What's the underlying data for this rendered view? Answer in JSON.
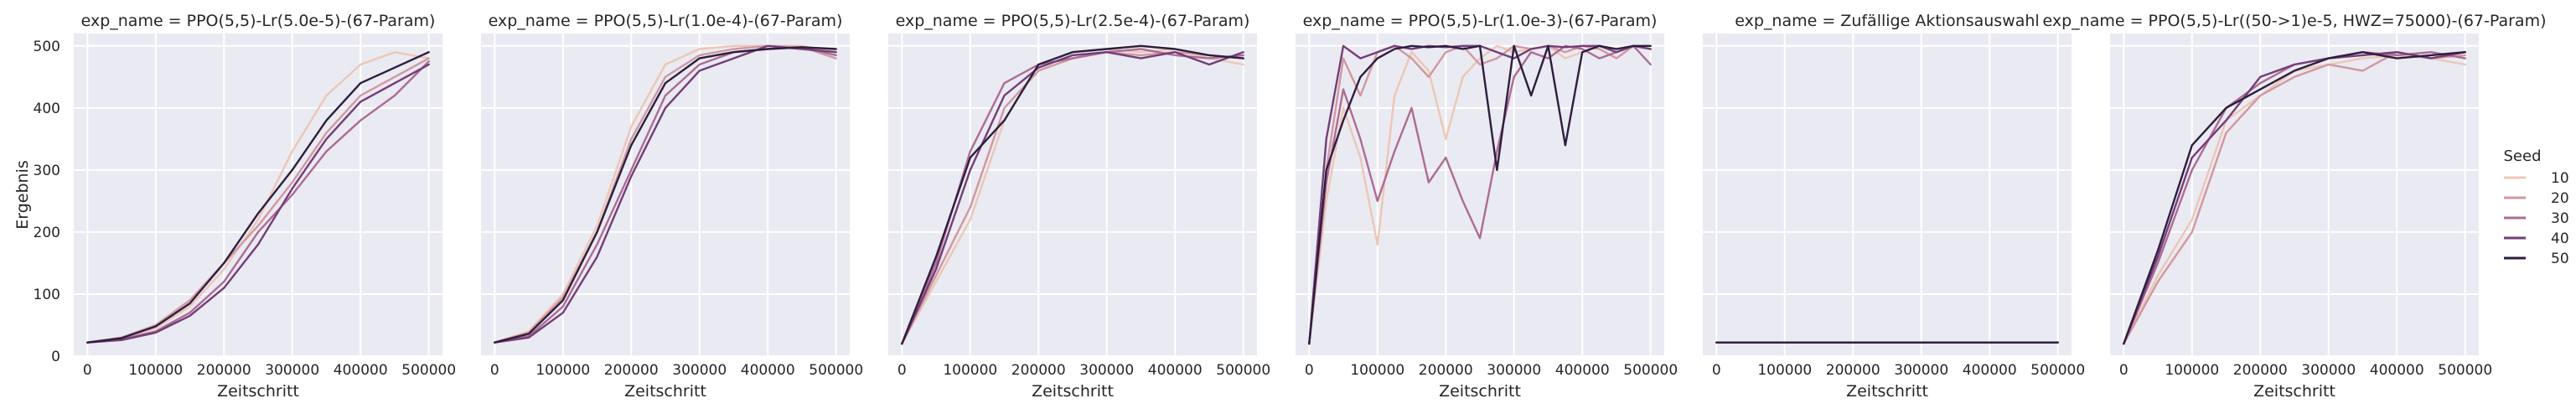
{
  "chart_data": {
    "type": "line",
    "facet_label": "exp_name",
    "xlabel": "Zeitschritt",
    "ylabel": "Ergebnis",
    "xlim": [
      -20000,
      520000
    ],
    "ylim": [
      0,
      520
    ],
    "xticks": [
      0,
      100000,
      200000,
      300000,
      400000,
      500000
    ],
    "yticks": [
      0,
      100,
      200,
      300,
      400,
      500
    ],
    "grid": true,
    "legend": {
      "title": "Seed",
      "placement": "right",
      "entries": [
        {
          "label": "10",
          "color": "#ecc7b6"
        },
        {
          "label": "20",
          "color": "#d297a0"
        },
        {
          "label": "30",
          "color": "#ad6c93"
        },
        {
          "label": "40",
          "color": "#733e77"
        },
        {
          "label": "50",
          "color": "#2d1e3e"
        }
      ]
    },
    "panels": [
      {
        "title": "exp_name = PPO(5,5)-Lr(5.0e-5)-(67-Param)",
        "x": [
          0,
          50000,
          100000,
          150000,
          200000,
          250000,
          300000,
          350000,
          400000,
          450000,
          500000
        ],
        "series": [
          {
            "name": "10",
            "values": [
              22,
              28,
              45,
              80,
              140,
              220,
              330,
              420,
              470,
              490,
              480
            ]
          },
          {
            "name": "20",
            "values": [
              22,
              30,
              50,
              90,
              150,
              210,
              280,
              360,
              420,
              450,
              480
            ]
          },
          {
            "name": "30",
            "values": [
              22,
              27,
              40,
              70,
              120,
              200,
              260,
              330,
              380,
              420,
              475
            ]
          },
          {
            "name": "40",
            "values": [
              22,
              26,
              38,
              65,
              110,
              180,
              270,
              350,
              410,
              440,
              470
            ]
          },
          {
            "name": "50",
            "values": [
              22,
              29,
              48,
              85,
              150,
              230,
              300,
              380,
              440,
              465,
              490
            ]
          }
        ]
      },
      {
        "title": "exp_name = PPO(5,5)-Lr(1.0e-4)-(67-Param)",
        "x": [
          0,
          50000,
          100000,
          150000,
          200000,
          250000,
          300000,
          350000,
          400000,
          450000,
          500000
        ],
        "series": [
          {
            "name": "10",
            "values": [
              22,
              40,
              100,
              210,
              370,
              470,
              495,
              500,
              500,
              500,
              490
            ]
          },
          {
            "name": "20",
            "values": [
              22,
              38,
              95,
              200,
              350,
              450,
              485,
              495,
              500,
              498,
              480
            ]
          },
          {
            "name": "30",
            "values": [
              22,
              32,
              80,
              180,
              300,
              420,
              470,
              490,
              495,
              498,
              485
            ]
          },
          {
            "name": "40",
            "values": [
              22,
              30,
              70,
              160,
              290,
              400,
              460,
              480,
              500,
              495,
              490
            ]
          },
          {
            "name": "50",
            "values": [
              22,
              36,
              90,
              200,
              340,
              440,
              480,
              490,
              495,
              498,
              495
            ]
          }
        ]
      },
      {
        "title": "exp_name = PPO(5,5)-Lr(2.5e-4)-(67-Param)",
        "x": [
          0,
          50000,
          100000,
          150000,
          200000,
          250000,
          300000,
          350000,
          400000,
          450000,
          500000
        ],
        "series": [
          {
            "name": "10",
            "values": [
              20,
              120,
              220,
              380,
              470,
              490,
              495,
              490,
              495,
              480,
              470
            ]
          },
          {
            "name": "20",
            "values": [
              20,
              130,
              240,
              400,
              460,
              480,
              490,
              485,
              490,
              485,
              480
            ]
          },
          {
            "name": "30",
            "values": [
              20,
              150,
              330,
              440,
              470,
              480,
              490,
              495,
              485,
              480,
              485
            ]
          },
          {
            "name": "40",
            "values": [
              20,
              140,
              300,
              420,
              465,
              485,
              490,
              480,
              490,
              470,
              490
            ]
          },
          {
            "name": "50",
            "values": [
              20,
              160,
              320,
              380,
              470,
              490,
              495,
              500,
              495,
              485,
              480
            ]
          }
        ]
      },
      {
        "title": "exp_name = PPO(5,5)-Lr(1.0e-3)-(67-Param)",
        "x": [
          0,
          25000,
          50000,
          75000,
          100000,
          125000,
          150000,
          175000,
          200000,
          225000,
          250000,
          275000,
          300000,
          325000,
          350000,
          375000,
          400000,
          425000,
          450000,
          475000,
          500000
        ],
        "series": [
          {
            "name": "10",
            "values": [
              20,
              250,
              400,
              320,
              180,
              420,
              490,
              460,
              350,
              450,
              480,
              500,
              490,
              495,
              500,
              480,
              490,
              500,
              495,
              498,
              500
            ]
          },
          {
            "name": "20",
            "values": [
              20,
              300,
              480,
              420,
              490,
              500,
              480,
              450,
              490,
              500,
              470,
              480,
              500,
              495,
              500,
              490,
              500,
              495,
              480,
              500,
              495
            ]
          },
          {
            "name": "30",
            "values": [
              20,
              280,
              430,
              350,
              250,
              330,
              400,
              280,
              320,
              250,
              190,
              330,
              450,
              490,
              480,
              500,
              495,
              480,
              490,
              500,
              470
            ]
          },
          {
            "name": "40",
            "values": [
              20,
              350,
              500,
              480,
              490,
              500,
              495,
              500,
              498,
              500,
              500,
              490,
              480,
              495,
              500,
              498,
              500,
              500,
              490,
              500,
              495
            ]
          },
          {
            "name": "50",
            "values": [
              20,
              300,
              380,
              450,
              480,
              495,
              500,
              498,
              500,
              495,
              500,
              300,
              500,
              420,
              500,
              340,
              490,
              500,
              495,
              500,
              500
            ]
          }
        ]
      },
      {
        "title": "exp_name = Zufällige Aktionsauswahl",
        "x": [
          0,
          100000,
          200000,
          300000,
          400000,
          500000
        ],
        "series": [
          {
            "name": "10",
            "values": [
              22,
              22,
              22,
              22,
              22,
              22
            ]
          },
          {
            "name": "20",
            "values": [
              22,
              22,
              22,
              22,
              22,
              22
            ]
          },
          {
            "name": "30",
            "values": [
              22,
              22,
              22,
              22,
              22,
              22
            ]
          },
          {
            "name": "40",
            "values": [
              22,
              22,
              22,
              22,
              22,
              22
            ]
          },
          {
            "name": "50",
            "values": [
              22,
              22,
              22,
              22,
              22,
              22
            ]
          }
        ]
      },
      {
        "title": "exp_name = PPO(5,5)-Lr((50->1)e-5, HWZ=75000)-(67-Param)",
        "x": [
          0,
          50000,
          100000,
          150000,
          200000,
          250000,
          300000,
          350000,
          400000,
          450000,
          500000
        ],
        "series": [
          {
            "name": "10",
            "values": [
              20,
              130,
              220,
              380,
              420,
              460,
              470,
              480,
              485,
              480,
              470
            ]
          },
          {
            "name": "20",
            "values": [
              20,
              120,
              200,
              360,
              420,
              450,
              470,
              460,
              490,
              480,
              485
            ]
          },
          {
            "name": "30",
            "values": [
              20,
              150,
              300,
              400,
              440,
              470,
              480,
              490,
              485,
              490,
              480
            ]
          },
          {
            "name": "40",
            "values": [
              20,
              160,
              320,
              380,
              450,
              470,
              480,
              485,
              490,
              480,
              490
            ]
          },
          {
            "name": "50",
            "values": [
              20,
              170,
              340,
              400,
              430,
              460,
              480,
              490,
              480,
              485,
              490
            ]
          }
        ]
      }
    ]
  }
}
